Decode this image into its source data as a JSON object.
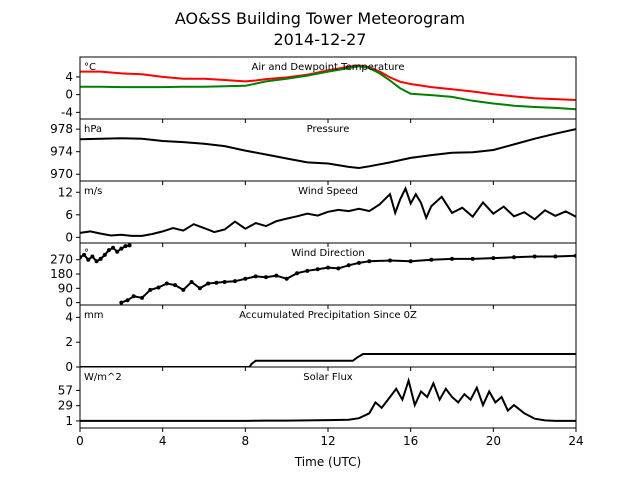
{
  "figure": {
    "title_line1": "AO&SS Building Tower Meteorogram",
    "title_line2": "2014-12-27",
    "xlabel": "Time (UTC)"
  },
  "chart_data": [
    {
      "type": "line",
      "id": "temp",
      "title": "Air and Dewpoint Temperature",
      "unit": "°C",
      "ylim": [
        -5.5,
        8.5
      ],
      "yticks": [
        -4,
        0,
        4
      ],
      "series": [
        {
          "color": "#ff0000",
          "x": [
            0,
            1,
            2,
            3,
            4,
            5,
            6,
            7,
            8,
            8.5,
            9,
            10,
            11,
            12,
            13,
            13.5,
            14,
            14.5,
            15,
            15.5,
            16,
            17,
            18,
            19,
            20,
            21,
            22,
            23,
            24
          ],
          "y": [
            5.2,
            5.2,
            4.8,
            4.6,
            4.0,
            3.6,
            3.6,
            3.3,
            3.0,
            3.2,
            3.5,
            3.9,
            4.5,
            5.5,
            6.3,
            6.6,
            6.2,
            5.2,
            3.9,
            2.9,
            2.4,
            1.7,
            1.2,
            0.7,
            0.1,
            -0.4,
            -0.8,
            -1.0,
            -1.2
          ]
        },
        {
          "color": "#008000",
          "x": [
            0,
            1,
            2,
            3,
            4,
            5,
            6,
            7,
            8,
            8.5,
            9,
            10,
            11,
            12,
            13,
            13.5,
            14,
            14.5,
            15,
            15.5,
            16,
            17,
            18,
            19,
            20,
            21,
            22,
            23,
            24
          ],
          "y": [
            1.8,
            1.8,
            1.7,
            1.7,
            1.7,
            1.8,
            1.8,
            1.9,
            2.0,
            2.5,
            3.0,
            3.6,
            4.3,
            5.2,
            6.0,
            6.4,
            6.0,
            4.8,
            3.2,
            1.4,
            0.2,
            -0.1,
            -0.5,
            -1.4,
            -2.0,
            -2.5,
            -2.8,
            -3.0,
            -3.3
          ]
        }
      ]
    },
    {
      "type": "line",
      "id": "pressure",
      "title": "Pressure",
      "unit": "hPa",
      "ylim": [
        968.8,
        979.8
      ],
      "yticks": [
        970,
        974,
        978
      ],
      "series": [
        {
          "color": "#000000",
          "x": [
            0,
            1,
            2,
            3,
            4,
            5,
            6,
            7,
            8,
            9,
            10,
            11,
            12,
            13,
            13.5,
            14,
            15,
            16,
            17,
            18,
            19,
            20,
            21,
            22,
            23,
            24
          ],
          "y": [
            976.2,
            976.3,
            976.4,
            976.3,
            975.9,
            975.7,
            975.4,
            975.0,
            974.2,
            973.5,
            972.8,
            972.1,
            971.9,
            971.3,
            971.1,
            971.4,
            972.1,
            972.9,
            973.4,
            973.8,
            973.9,
            974.3,
            975.3,
            976.3,
            977.2,
            978.0
          ]
        }
      ]
    },
    {
      "type": "line",
      "id": "wind_speed",
      "title": "Wind Speed",
      "unit": "m/s",
      "ylim": [
        -1.5,
        15
      ],
      "yticks": [
        0,
        6,
        12
      ],
      "series": [
        {
          "color": "#000000",
          "x": [
            0,
            0.5,
            1,
            1.5,
            2,
            2.5,
            3,
            3.5,
            4,
            4.5,
            5,
            5.5,
            6,
            6.5,
            7,
            7.5,
            8,
            8.5,
            9,
            9.5,
            10,
            10.5,
            11,
            11.5,
            12,
            12.5,
            13,
            13.5,
            14,
            14.5,
            15,
            15.25,
            15.5,
            15.75,
            16,
            16.25,
            16.5,
            16.75,
            17,
            17.5,
            18,
            18.5,
            19,
            19.5,
            20,
            20.5,
            21,
            21.5,
            22,
            22.5,
            23,
            23.5,
            24
          ],
          "y": [
            1.2,
            1.6,
            1.0,
            0.5,
            0.7,
            0.4,
            0.4,
            0.9,
            1.6,
            2.5,
            1.8,
            3.5,
            2.5,
            1.4,
            2.1,
            4.2,
            2.3,
            3.8,
            3.0,
            4.3,
            5.0,
            5.6,
            6.3,
            5.8,
            6.8,
            7.3,
            7.0,
            7.6,
            7.0,
            8.8,
            11.5,
            6.5,
            10.2,
            13.0,
            9.0,
            11.5,
            9.2,
            5.2,
            8.3,
            10.8,
            6.5,
            7.9,
            5.5,
            9.3,
            6.3,
            8.2,
            5.6,
            6.7,
            4.8,
            7.2,
            5.7,
            6.9,
            5.5
          ]
        }
      ]
    },
    {
      "type": "scatter",
      "id": "wind_direction",
      "title": "Wind Direction",
      "unit": "°",
      "ylim": [
        -15,
        375
      ],
      "yticks": [
        0,
        90,
        180,
        270
      ],
      "series": [
        {
          "color": "#000000",
          "x": [
            0,
            0.2,
            0.4,
            0.6,
            0.8,
            1.0,
            1.2,
            1.4,
            1.6,
            1.8,
            2.0,
            2.2,
            2.4
          ],
          "y": [
            285,
            300,
            270,
            290,
            260,
            275,
            300,
            330,
            345,
            320,
            340,
            355,
            360
          ]
        },
        {
          "color": "#000000",
          "x": [
            2.0,
            2.3,
            2.6,
            3.0,
            3.4,
            3.8,
            4.2,
            4.6,
            5.0,
            5.4,
            5.8,
            6.2,
            6.6,
            7,
            7.5,
            8,
            8.5,
            9,
            9.5,
            10,
            10.5,
            11,
            11.5,
            12,
            12.5,
            13,
            13.5,
            14,
            15,
            16,
            17,
            18,
            19,
            20,
            21,
            22,
            23,
            24
          ],
          "y": [
            0,
            15,
            40,
            30,
            80,
            95,
            120,
            110,
            80,
            130,
            90,
            120,
            125,
            130,
            135,
            150,
            165,
            160,
            170,
            150,
            185,
            200,
            210,
            220,
            215,
            235,
            250,
            260,
            265,
            260,
            270,
            275,
            275,
            280,
            285,
            290,
            290,
            295
          ]
        }
      ]
    },
    {
      "type": "line",
      "id": "precip",
      "title": "Accumulated Precipitation Since 0Z",
      "unit": "mm",
      "ylim": [
        0,
        5
      ],
      "yticks": [
        0,
        2,
        4
      ],
      "series": [
        {
          "color": "#000000",
          "x": [
            0,
            8.2,
            8.3,
            8.5,
            13.2,
            13.4,
            13.7,
            24
          ],
          "y": [
            0,
            0,
            0.25,
            0.5,
            0.5,
            0.75,
            1.05,
            1.05
          ]
        }
      ]
    },
    {
      "type": "line",
      "id": "solar",
      "title": "Solar Flux",
      "unit": "W/m^2",
      "ylim": [
        -12,
        100
      ],
      "yticks": [
        1,
        29,
        57
      ],
      "series": [
        {
          "color": "#000000",
          "x": [
            0,
            8,
            9,
            10,
            11,
            12,
            13,
            13.5,
            14,
            14.3,
            14.6,
            15,
            15.3,
            15.6,
            15.9,
            16.2,
            16.5,
            16.8,
            17.1,
            17.4,
            17.7,
            18,
            18.3,
            18.6,
            18.9,
            19.2,
            19.5,
            19.8,
            20.1,
            20.4,
            20.7,
            21,
            21.5,
            22,
            22.5,
            23,
            24
          ],
          "y": [
            1,
            1,
            1.5,
            1.5,
            2,
            2.5,
            3,
            6,
            15,
            35,
            25,
            45,
            60,
            40,
            75,
            30,
            55,
            45,
            70,
            40,
            60,
            45,
            35,
            50,
            40,
            62,
            30,
            55,
            35,
            45,
            20,
            30,
            15,
            5,
            2,
            1,
            1
          ]
        }
      ]
    }
  ],
  "xaxis": {
    "xlim": [
      0,
      24
    ],
    "xticks": [
      0,
      4,
      8,
      12,
      16,
      20,
      24
    ]
  }
}
